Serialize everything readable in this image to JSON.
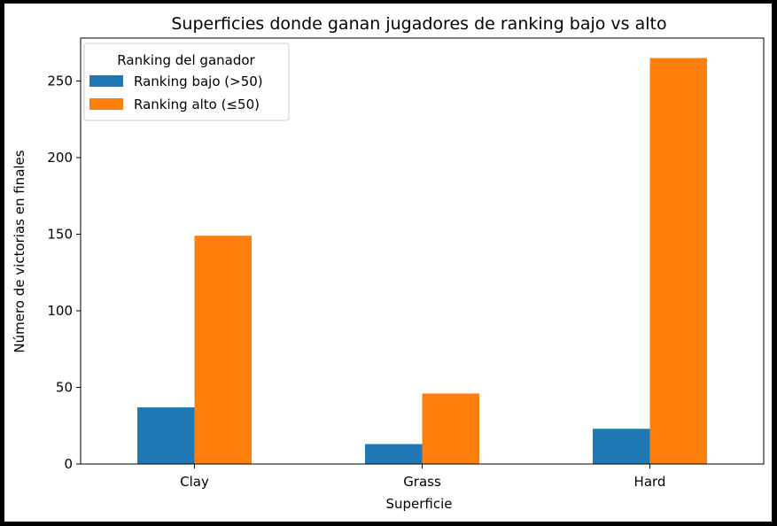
{
  "chart_data": {
    "type": "bar",
    "title": "Superficies donde ganan jugadores de ranking bajo vs alto",
    "xlabel": "Superficie",
    "ylabel": "Número de victorias en finales",
    "categories": [
      "Clay",
      "Grass",
      "Hard"
    ],
    "series": [
      {
        "name": "Ranking bajo (>50)",
        "values": [
          37,
          13,
          23
        ],
        "color": "#1f77b4"
      },
      {
        "name": "Ranking alto (≤50)",
        "values": [
          149,
          46,
          265
        ],
        "color": "#ff7f0e"
      }
    ],
    "ylim": [
      0,
      278
    ],
    "yticks": [
      0,
      50,
      100,
      150,
      200,
      250
    ],
    "legend": {
      "title": "Ranking del ganador",
      "placement": "top-left"
    },
    "grid": false
  }
}
